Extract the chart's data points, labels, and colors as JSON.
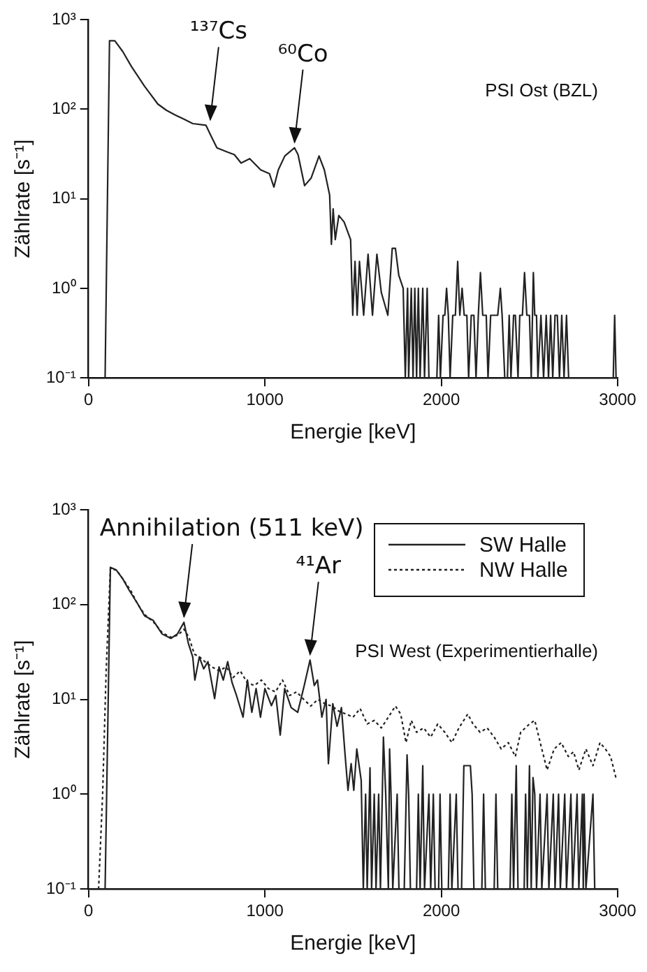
{
  "chart_data": [
    {
      "type": "line",
      "xlabel": "Energie [keV]",
      "ylabel": "Zählrate [s⁻¹]",
      "log": "y",
      "grid": false,
      "legend": false,
      "marker": "none",
      "xlim": [
        0,
        3000
      ],
      "xticks": [
        0,
        1000,
        2000,
        3000
      ],
      "ylim": [
        0.1,
        1000
      ],
      "yticks": [
        {
          "value": 0.1,
          "label": "10⁻¹"
        },
        {
          "value": 1,
          "label": "10⁰"
        },
        {
          "value": 10,
          "label": "10¹"
        },
        {
          "value": 100,
          "label": "10²"
        },
        {
          "value": 1000,
          "label": "10³"
        }
      ],
      "annotations": [
        {
          "text": "¹³⁷Cs",
          "x": 690,
          "y": 66
        },
        {
          "text": "⁶⁰Co",
          "x": 1168,
          "y": 37
        },
        "PSI Ost (BZL)"
      ],
      "series": [
        {
          "color": "#222222",
          "line_style": "solid",
          "x": [
            94,
            119,
            149,
            194,
            243,
            318,
            393,
            442,
            492,
            542,
            591,
            666,
            691,
            728,
            790,
            827,
            865,
            914,
            976,
            1026,
            1051,
            1076,
            1113,
            1168,
            1188,
            1225,
            1262,
            1307,
            1337,
            1367,
            1377,
            1387,
            1399,
            1419,
            1449,
            1486,
            1498,
            1511,
            1523,
            1536,
            1560,
            1585,
            1610,
            1635,
            1660,
            1697,
            1722,
            1740,
            1759,
            1784,
            1796,
            1809,
            1815,
            1830,
            1840,
            1850,
            1860,
            1870,
            1880,
            1895,
            1905,
            1920,
            1930,
            1975,
            1985,
            1995,
            2010,
            2020,
            2030,
            2040,
            2050,
            2065,
            2080,
            2093,
            2105,
            2118,
            2130,
            2145,
            2155,
            2170,
            2185,
            2197,
            2210,
            2222,
            2235,
            2255,
            2265,
            2280,
            2300,
            2320,
            2335,
            2345,
            2360,
            2375,
            2385,
            2395,
            2410,
            2420,
            2435,
            2445,
            2460,
            2472,
            2485,
            2500,
            2510,
            2522,
            2530,
            2540,
            2548,
            2565,
            2580,
            2595,
            2608,
            2620,
            2632,
            2645,
            2658,
            2670,
            2683,
            2696,
            2710,
            2722,
            2735,
            2975,
            2983,
            2991
          ],
          "values": [
            0.1,
            580,
            580,
            440,
            300,
            180,
            114,
            97,
            86,
            77,
            69,
            66,
            52,
            37,
            33,
            31,
            25,
            28,
            21,
            19,
            13.5,
            21,
            30,
            37,
            31,
            14,
            17,
            30,
            21,
            11,
            3.1,
            7.7,
            3.5,
            6.5,
            5.5,
            3.5,
            0.5,
            2,
            0.5,
            2,
            0.5,
            2.4,
            0.5,
            2.4,
            0.9,
            0.5,
            2.8,
            2.8,
            1.4,
            1,
            0.1,
            1,
            0.1,
            1,
            0.1,
            1,
            0.1,
            1,
            0.1,
            1,
            0.1,
            1,
            0.1,
            0.1,
            0.5,
            0.1,
            0.5,
            0.5,
            1,
            0.5,
            0.1,
            0.5,
            0.5,
            2,
            0.5,
            1,
            0.5,
            0.5,
            0.1,
            0.5,
            0.5,
            0.1,
            0.5,
            1.5,
            0.5,
            0.5,
            0.1,
            0.5,
            0.5,
            0.5,
            1,
            0.5,
            0.1,
            0.1,
            0.5,
            0.1,
            0.5,
            0.5,
            0.1,
            0.5,
            0.5,
            1.5,
            0.5,
            0.5,
            0.1,
            1.5,
            0.5,
            0.5,
            0.1,
            0.5,
            0.1,
            0.5,
            0.1,
            0.5,
            0.1,
            0.5,
            0.5,
            0.1,
            0.5,
            0.1,
            0.5,
            0.1,
            0.1,
            0.1,
            0.5,
            0.1
          ]
        }
      ]
    },
    {
      "type": "line",
      "xlabel": "Energie [keV]",
      "ylabel": "Zählrate [s⁻¹]",
      "log": "y",
      "grid": false,
      "legend": "top right",
      "marker": "none",
      "xlim": [
        0,
        3000
      ],
      "xticks": [
        0,
        1000,
        2000,
        3000
      ],
      "ylim": [
        0.1,
        1000
      ],
      "yticks": [
        {
          "value": 0.1,
          "label": "10⁻¹"
        },
        {
          "value": 1,
          "label": "10⁰"
        },
        {
          "value": 10,
          "label": "10¹"
        },
        {
          "value": 100,
          "label": "10²"
        },
        {
          "value": 1000,
          "label": "10³"
        }
      ],
      "annotations": [
        {
          "text": "Annihilation (511 keV)",
          "x": 541,
          "y": 65
        },
        {
          "text": "⁴¹Ar",
          "x": 1256,
          "y": 26
        },
        "PSI West (Experimentierhalle)"
      ],
      "series": [
        {
          "name": "SW Halle",
          "color": "#222222",
          "line_style": "solid",
          "x": [
            94,
            124,
            156,
            194,
            231,
            280,
            318,
            367,
            417,
            467,
            504,
            541,
            566,
            591,
            603,
            628,
            653,
            677,
            715,
            740,
            764,
            789,
            814,
            839,
            876,
            901,
            926,
            950,
            975,
            1000,
            1037,
            1062,
            1087,
            1112,
            1149,
            1186,
            1223,
            1256,
            1280,
            1298,
            1323,
            1347,
            1360,
            1385,
            1409,
            1434,
            1454,
            1471,
            1489,
            1504,
            1521,
            1546,
            1558,
            1571,
            1580,
            1596,
            1605,
            1620,
            1630,
            1645,
            1655,
            1672,
            1685,
            1700,
            1707,
            1715,
            1725,
            1750,
            1760,
            1790,
            1806,
            1815,
            1825,
            1860,
            1870,
            1880,
            1895,
            1905,
            1930,
            1940,
            1955,
            1965,
            1985,
            1993,
            2003,
            2040,
            2050,
            2060,
            2085,
            2095,
            2115,
            2128,
            2165,
            2175,
            2185,
            2230,
            2240,
            2250,
            2300,
            2310,
            2320,
            2390,
            2400,
            2410,
            2425,
            2435,
            2470,
            2478,
            2488,
            2500,
            2510,
            2520,
            2530,
            2540,
            2560,
            2570,
            2600,
            2610,
            2635,
            2645,
            2665,
            2675,
            2700,
            2710,
            2735,
            2745,
            2770,
            2780,
            2800,
            2805,
            2810,
            2820,
            2860,
            2870
          ],
          "values": [
            0.1,
            247,
            233,
            187,
            141,
            101,
            76,
            68,
            49,
            44,
            49,
            65,
            39,
            28,
            16,
            28,
            21,
            25,
            10.2,
            22,
            16,
            25,
            15,
            11,
            6.5,
            16,
            7.3,
            13,
            6.5,
            13,
            8.6,
            11,
            4.2,
            13,
            8.2,
            7.3,
            14,
            26,
            14,
            16,
            6.5,
            10,
            2.1,
            9,
            5.2,
            8.2,
            2.7,
            1.1,
            2.1,
            1.1,
            3,
            1.4,
            0.1,
            1,
            0.1,
            1.9,
            0.1,
            1,
            0.1,
            1,
            0.1,
            4,
            1,
            0.1,
            3,
            1,
            0.1,
            1,
            0.1,
            0.1,
            2.6,
            1,
            0.1,
            0.1,
            1,
            0.1,
            2,
            0.1,
            1,
            0.1,
            1,
            0.1,
            0.1,
            1,
            0.1,
            0.1,
            1,
            0.1,
            1,
            0.1,
            0.1,
            2,
            2,
            1,
            0.1,
            0.1,
            1,
            0.1,
            0.1,
            1,
            0.1,
            0.1,
            1,
            0.1,
            2,
            0.1,
            0.1,
            1,
            0.1,
            2,
            0.1,
            1.5,
            1,
            0.1,
            1,
            0.1,
            1,
            0.1,
            1,
            0.1,
            1,
            0.1,
            1,
            0.1,
            1,
            0.1,
            1,
            0.1,
            1,
            0.1,
            1,
            0.1,
            1,
            0.1
          ]
        },
        {
          "name": "NW Halle",
          "color": "#222222",
          "line_style": "dotted",
          "x": [
            57,
            80,
            100,
            124,
            160,
            200,
            240,
            280,
            320,
            370,
            420,
            470,
            510,
            541,
            570,
            600,
            630,
            660,
            700,
            740,
            780,
            820,
            860,
            900,
            940,
            980,
            1020,
            1060,
            1100,
            1140,
            1180,
            1220,
            1260,
            1300,
            1340,
            1380,
            1420,
            1460,
            1500,
            1540,
            1580,
            1620,
            1660,
            1700,
            1740,
            1770,
            1800,
            1830,
            1860,
            1900,
            1940,
            1980,
            2020,
            2060,
            2100,
            2150,
            2180,
            2220,
            2260,
            2300,
            2340,
            2380,
            2420,
            2450,
            2500,
            2530,
            2570,
            2600,
            2640,
            2680,
            2720,
            2750,
            2780,
            2820,
            2860,
            2900,
            2930,
            2960,
            2990
          ],
          "values": [
            0.1,
            1,
            20,
            240,
            230,
            180,
            140,
            100,
            78,
            65,
            50,
            45,
            48,
            55,
            45,
            30,
            28,
            25,
            22,
            20,
            22,
            17,
            20,
            15,
            14,
            16,
            13,
            12,
            16,
            11,
            12,
            10,
            8.5,
            10,
            9,
            8.5,
            7.5,
            7,
            6.5,
            8,
            5.5,
            6,
            5,
            6.5,
            8.5,
            7,
            3.5,
            6,
            4.5,
            5,
            4,
            5.5,
            4.5,
            3.5,
            5,
            7,
            5.5,
            4.5,
            5,
            4,
            3,
            3.5,
            2.5,
            4.5,
            5.5,
            6,
            3,
            1.8,
            3,
            3.5,
            2.5,
            2.8,
            1.8,
            3,
            2,
            3.5,
            3,
            2.5,
            1.5
          ]
        }
      ]
    }
  ]
}
